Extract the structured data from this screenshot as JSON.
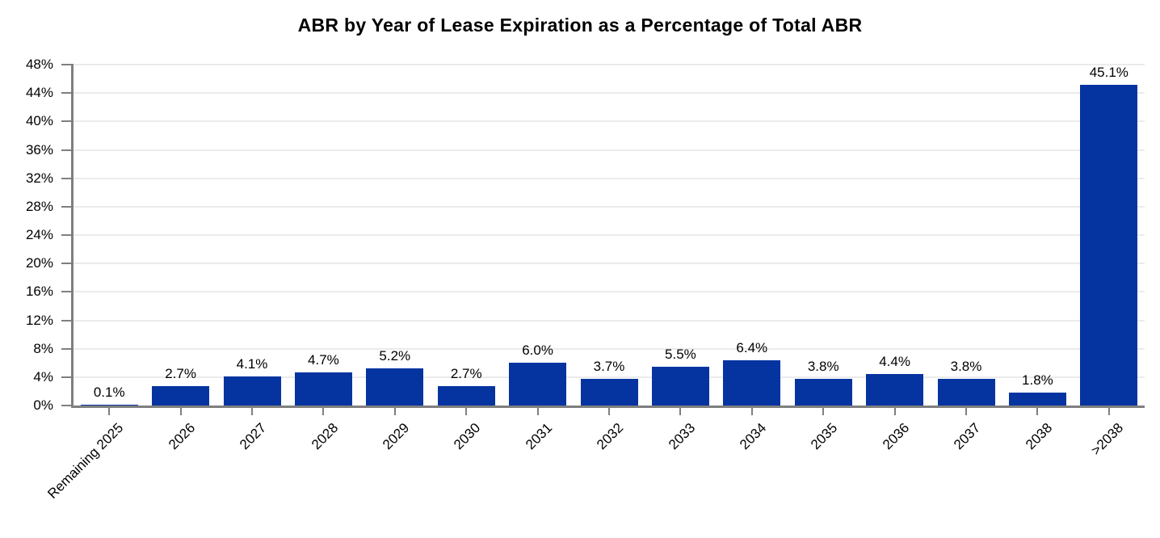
{
  "chart": {
    "title": "ABR by Year of Lease Expiration as a Percentage of Total ABR"
  },
  "chart_data": {
    "type": "bar",
    "title": "ABR by Year of Lease Expiration as a Percentage of Total ABR",
    "categories": [
      "Remaining 2025",
      "2026",
      "2027",
      "2028",
      "2029",
      "2030",
      "2031",
      "2032",
      "2033",
      "2034",
      "2035",
      "2036",
      "2037",
      "2038",
      ">2038"
    ],
    "values": [
      0.1,
      2.7,
      4.1,
      4.7,
      5.2,
      2.7,
      6.0,
      3.7,
      5.5,
      6.4,
      3.8,
      4.4,
      3.8,
      1.8,
      45.1
    ],
    "value_labels": [
      "0.1%",
      "2.7%",
      "4.1%",
      "4.7%",
      "5.2%",
      "2.7%",
      "6.0%",
      "3.7%",
      "5.5%",
      "6.4%",
      "3.8%",
      "4.4%",
      "3.8%",
      "1.8%",
      "45.1%"
    ],
    "xlabel": "",
    "ylabel": "",
    "ylim": [
      0,
      48
    ],
    "y_axis": {
      "min": 0,
      "max": 48,
      "step": 4,
      "labels": [
        "0%",
        "4%",
        "8%",
        "12%",
        "16%",
        "20%",
        "24%",
        "28%",
        "32%",
        "36%",
        "40%",
        "44%",
        "48%"
      ]
    },
    "legend": "none",
    "grid": "horizontal",
    "colors": {
      "bar": "#0534A0",
      "axis": "#7F7F7F",
      "gridline": "#EBEBEB",
      "text": "#000000",
      "background": "#FFFFFF"
    }
  }
}
